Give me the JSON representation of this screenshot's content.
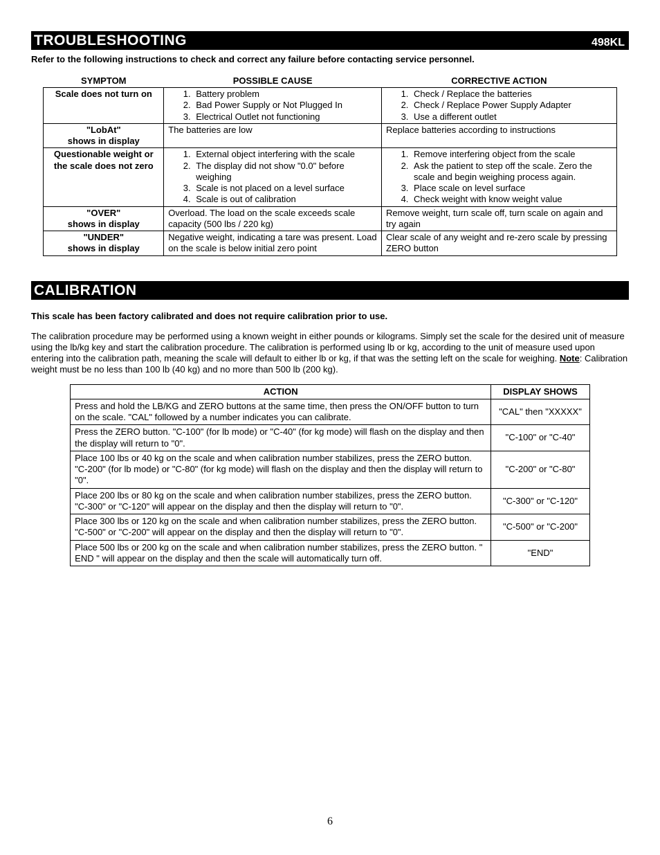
{
  "header": {
    "troubleshooting_title": "TROUBLESHOOTING",
    "model": "498KL",
    "calibration_title": "CALIBRATION"
  },
  "troubleshoot_intro": "Refer to the following instructions to check and correct any failure before contacting service personnel.",
  "troubleshoot_headers": [
    "SYMPTOM",
    "POSSIBLE CAUSE",
    "CORRECTIVE ACTION"
  ],
  "troubleshoot_rows": [
    {
      "symptom": "Scale does not turn on",
      "causes": [
        "Battery problem",
        "Bad Power Supply or Not Plugged In",
        "Electrical Outlet not functioning"
      ],
      "actions": [
        "Check / Replace the batteries",
        "Check / Replace Power Supply Adapter",
        "Use a different outlet"
      ]
    },
    {
      "symptom_line1": "\"LobAt\"",
      "symptom_line2": "shows in display",
      "cause_text": "The batteries are low",
      "action_text": "Replace batteries according to instructions"
    },
    {
      "symptom_line1": "Questionable weight or",
      "symptom_line2": "the scale does not zero",
      "causes": [
        "External object interfering with the scale",
        "The display did not show \"0.0\" before weighing",
        "Scale is not placed on a level surface",
        "Scale is out of calibration"
      ],
      "actions": [
        "Remove interfering object from the scale",
        "Ask the patient to step off the scale. Zero the scale and begin weighing process again.",
        "Place scale on level surface",
        "Check weight with know weight value"
      ]
    },
    {
      "symptom_line1": "\"OVER\"",
      "symptom_line2": "shows in display",
      "cause_text": "Overload.  The load on the scale exceeds scale capacity (500 lbs / 220 kg)",
      "action_text": "Remove weight, turn scale off, turn scale on again and try again"
    },
    {
      "symptom_line1": "\"UNDER\"",
      "symptom_line2": "shows in display",
      "cause_text": "Negative weight, indicating a tare was present.  Load on the scale is below initial zero point",
      "action_text": "Clear scale of any weight and re-zero scale by pressing ZERO button"
    }
  ],
  "calibration_intro_bold": "This scale has been factory calibrated and does not require calibration prior to use.",
  "calibration_para_before_note": "The calibration procedure may be performed using a known weight in either pounds or kilograms. Simply set the scale for the desired unit of measure using the lb/kg key and start the calibration procedure. The calibration is performed using lb or kg, according to the unit of measure used upon entering into the calibration path, meaning the scale will default to either lb or kg, if that was the setting left on the scale for weighing.  ",
  "calibration_note_label": "Note",
  "calibration_para_after_note": ":  Calibration weight must be no less than 100 lb (40 kg) and no more than 500 lb (200 kg).",
  "calib_headers": [
    "ACTION",
    "DISPLAY SHOWS"
  ],
  "calib_rows": [
    {
      "action": "Press and hold the LB/KG and ZERO buttons at the same time, then press the ON/OFF button to turn on the scale.  \"CAL\" followed by a number indicates you can calibrate.",
      "display": "\"CAL\" then \"XXXXX\""
    },
    {
      "action": "Press the ZERO button.  \"C-100\" (for lb mode) or \"C-40\" (for kg mode) will flash on the display and then the display will return to \"0\".",
      "display": "\"C-100\" or \"C-40\""
    },
    {
      "action": "Place 100 lbs or 40 kg on the scale and when calibration number stabilizes, press the ZERO button. \"C-200\" (for lb mode) or \"C-80\" (for kg mode) will flash on the display and then the display will return to \"0\".",
      "display": "\"C-200\" or \"C-80\""
    },
    {
      "action": "Place 200 lbs or 80 kg on the scale and when calibration number stabilizes, press the ZERO button. \"C-300\"  or \"C-120\" will appear on the display and then the display will return to \"0\".",
      "display": "\"C-300\" or \"C-120\""
    },
    {
      "action": "Place 300 lbs or 120 kg on the scale and when calibration number stabilizes, press the ZERO button. \"C-500\"  or \"C-200\" will appear on the display and then the display will return to \"0\".",
      "display": "\"C-500\" or \"C-200\""
    },
    {
      "action": "Place 500 lbs or 200 kg on the scale and when calibration number stabilizes, press the ZERO button. \" END \" will appear on the display and then the scale will automatically turn off.",
      "display": "\"END\""
    }
  ],
  "page_number": "6"
}
